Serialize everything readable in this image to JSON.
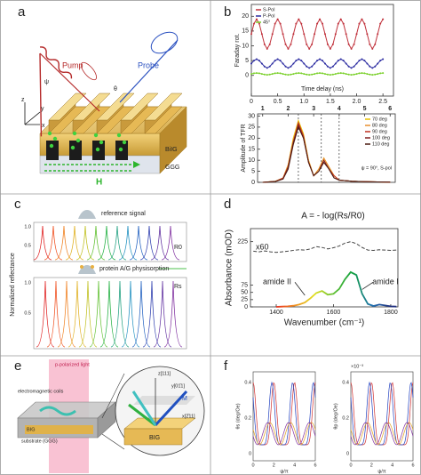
{
  "panels": {
    "labels": [
      "a",
      "b",
      "c",
      "d",
      "e",
      "f"
    ],
    "a": {
      "pump": "Pump",
      "probe": "Probe",
      "field": "H",
      "layer_top": "BiIG",
      "layer_bottom": "GGG",
      "axes": [
        "z",
        "y",
        "x"
      ],
      "angles": [
        "θ",
        "ψ"
      ]
    },
    "c": {
      "reference": "reference signal",
      "sample": "protein A/G physisorption",
      "r_ref": "R0",
      "r_sample": "Rs",
      "y_label": "Normalized reflectance",
      "ticks": [
        "1.0",
        "0.5",
        "1.0",
        "0.5"
      ]
    },
    "e": {
      "light": "p-polarized light",
      "coils": "electromagnetic coils",
      "substrate": "substrate (GGG)",
      "film": "BIG",
      "film_zoom": "BIG",
      "axes": [
        "z[111]",
        "x[2̄11]",
        "y[01̄1]"
      ],
      "magnetization": "M"
    },
    "f": {
      "y_labels": [
        "θs (deg/Oe)",
        "θp (deg/Oe)"
      ],
      "x_labels": [
        "ψ/π",
        "ψ/π"
      ],
      "yticks": [
        "0.4",
        "0.2",
        "0"
      ],
      "xticks": [
        "0",
        "2",
        "4",
        "6"
      ],
      "scale": "×10⁻³"
    }
  },
  "chart_data": [
    {
      "type": "line",
      "x_label": "Time delay (ns)",
      "y_label": "Faraday rot.",
      "legend": "upper left",
      "xlim": [
        0,
        2.7
      ],
      "xticks": [
        0,
        0.5,
        {
          "value": 1,
          "label": "1.0"
        },
        1.5,
        {
          "value": 2,
          "label": "2.0"
        },
        2.5
      ],
      "ylim": [
        -7,
        24
      ],
      "yticks": [
        0,
        5,
        10,
        15,
        20
      ],
      "x": [
        0,
        0.05,
        0.1,
        0.15,
        0.2,
        0.25,
        0.3,
        0.35,
        0.4,
        0.45,
        0.5,
        0.55,
        0.6,
        0.65,
        0.7,
        0.75,
        0.8,
        0.85,
        0.9,
        0.95,
        1,
        1.05,
        1.1,
        1.15,
        1.2,
        1.25,
        1.3,
        1.35,
        1.4,
        1.45,
        1.5,
        1.55,
        1.6,
        1.65,
        1.7,
        1.75,
        1.8,
        1.85,
        1.9,
        1.95,
        2,
        2.05,
        2.1,
        2.15,
        2.2,
        2.25,
        2.3,
        2.35,
        2.4,
        2.45,
        2.5
      ],
      "series": [
        {
          "name": "S-Pol",
          "color": "#c0303a",
          "values": [
            14,
            17.5,
            19,
            17.5,
            14,
            10.5,
            9,
            10.5,
            14,
            17.5,
            19,
            17.5,
            14,
            10.5,
            9,
            10.5,
            14,
            17.5,
            19,
            17.5,
            14,
            10.5,
            9,
            10.5,
            14,
            17.5,
            19,
            17.5,
            14,
            10.5,
            9,
            10.5,
            14,
            17.5,
            19,
            17.5,
            14,
            10.5,
            9,
            10.5,
            14,
            17.5,
            19,
            17.5,
            14,
            10.5,
            9,
            10.5,
            14,
            17.5,
            19
          ]
        },
        {
          "name": "P-Pol",
          "color": "#2a2aa0",
          "values": [
            4,
            5,
            5.5,
            5,
            4,
            3,
            2.5,
            3,
            4,
            5,
            5.5,
            5,
            4,
            3,
            2.5,
            3,
            4,
            5,
            5.5,
            5,
            4,
            3,
            2.5,
            3,
            4,
            5,
            5.5,
            5,
            4,
            3,
            2.5,
            3,
            4,
            5,
            5.5,
            5,
            4,
            3,
            2.5,
            3,
            4,
            5,
            5.5,
            5,
            4,
            3,
            2.5,
            3,
            4,
            5,
            5.5
          ]
        },
        {
          "name": "45°",
          "color": "#7ad02a",
          "values": [
            0.5,
            0.7,
            0.8,
            0.7,
            0.5,
            0.3,
            0.2,
            0.3,
            0.5,
            0.7,
            0.8,
            0.7,
            0.5,
            0.3,
            0.2,
            0.3,
            0.5,
            0.7,
            0.8,
            0.7,
            0.5,
            0.3,
            0.2,
            0.3,
            0.5,
            0.7,
            0.8,
            0.7,
            0.5,
            0.3,
            0.2,
            0.3,
            0.5,
            0.7,
            0.8,
            0.7,
            0.5,
            0.3,
            0.2,
            0.3,
            0.5,
            0.7,
            0.8,
            0.7,
            0.5,
            0.3,
            0.2,
            0.3,
            0.5,
            0.7,
            0.8
          ]
        }
      ]
    },
    {
      "type": "line",
      "y_label": "Amplitude of TFR",
      "annotation": "ψ = 90°, S-pol",
      "legend": "upper right",
      "xlim": [
        0.8,
        6.2
      ],
      "xticks": [
        1,
        2,
        3,
        4,
        5,
        6
      ],
      "xticks_position": "top",
      "ylim": [
        0,
        31
      ],
      "yticks": [
        0,
        5,
        10,
        15,
        20,
        25,
        30
      ],
      "reference_lines": [
        2.4,
        3.3,
        4.0
      ],
      "x": [
        1,
        1.5,
        1.8,
        2,
        2.2,
        2.4,
        2.6,
        2.8,
        3,
        3.2,
        3.4,
        3.6,
        3.8,
        4,
        4.5,
        5,
        5.5,
        6
      ],
      "series": [
        {
          "name": "70 deg",
          "color": "#e8c000",
          "values": [
            0,
            0.5,
            2,
            8,
            20,
            28,
            22,
            10,
            3,
            6,
            11,
            7,
            3,
            1,
            0.5,
            0.3,
            0.2,
            0.1
          ]
        },
        {
          "name": "80 deg",
          "color": "#e89030",
          "values": [
            0,
            0.5,
            2,
            8,
            19,
            27,
            21,
            10,
            3,
            6,
            11,
            7,
            3,
            1,
            0.5,
            0.3,
            0.2,
            0.1
          ]
        },
        {
          "name": "90 deg",
          "color": "#c03020",
          "values": [
            0,
            0.4,
            2,
            7,
            18,
            27,
            21,
            9,
            3,
            5,
            10,
            6,
            3,
            1,
            0.5,
            0.3,
            0.2,
            0.1
          ]
        },
        {
          "name": "100 deg",
          "color": "#802020",
          "values": [
            0,
            0.4,
            1.5,
            7,
            18,
            26,
            20,
            9,
            3,
            5,
            10,
            6,
            2,
            1,
            0.5,
            0.3,
            0.2,
            0.1
          ]
        },
        {
          "name": "110 deg",
          "color": "#4a1a10",
          "values": [
            0,
            0.4,
            1.5,
            6,
            17,
            25,
            20,
            9,
            3,
            5,
            9,
            6,
            2,
            1,
            0.5,
            0.3,
            0.2,
            0.1
          ]
        }
      ]
    },
    {
      "type": "line",
      "title": "A = - log(Rs/R0)",
      "x_label": "Wavenumber (cm⁻¹)",
      "y_label": "Absorbance (mOD)",
      "annotations": [
        "x60",
        "amide II",
        "amide I"
      ],
      "xlim": [
        1310,
        1825
      ],
      "xticks": [
        1400,
        1600,
        1800
      ],
      "ylim": [
        0,
        270
      ],
      "yticks": [
        0,
        25,
        50,
        75,
        225
      ],
      "x": [
        1320,
        1340,
        1360,
        1380,
        1400,
        1420,
        1440,
        1460,
        1480,
        1500,
        1520,
        1540,
        1560,
        1580,
        1600,
        1620,
        1640,
        1660,
        1680,
        1700,
        1720,
        1740,
        1760,
        1780,
        1800,
        1820
      ],
      "series": [
        {
          "color": "#444444",
          "dash": true,
          "values": [
            192,
            190,
            193,
            190,
            188,
            190,
            192,
            195,
            197,
            196,
            200,
            208,
            205,
            200,
            204,
            210,
            220,
            225,
            218,
            205,
            196,
            195,
            197,
            196,
            195,
            196
          ]
        },
        {
          "colors": [
            "#e83020",
            "#f09020",
            "#e0e020",
            "#60c030",
            "#10a040",
            "#2070b0",
            "#203080"
          ],
          "values": [
            null,
            null,
            null,
            null,
            0,
            1,
            2,
            4,
            8,
            15,
            30,
            48,
            55,
            42,
            45,
            62,
            95,
            120,
            110,
            45,
            10,
            3,
            8,
            5,
            2,
            1
          ]
        }
      ]
    }
  ]
}
